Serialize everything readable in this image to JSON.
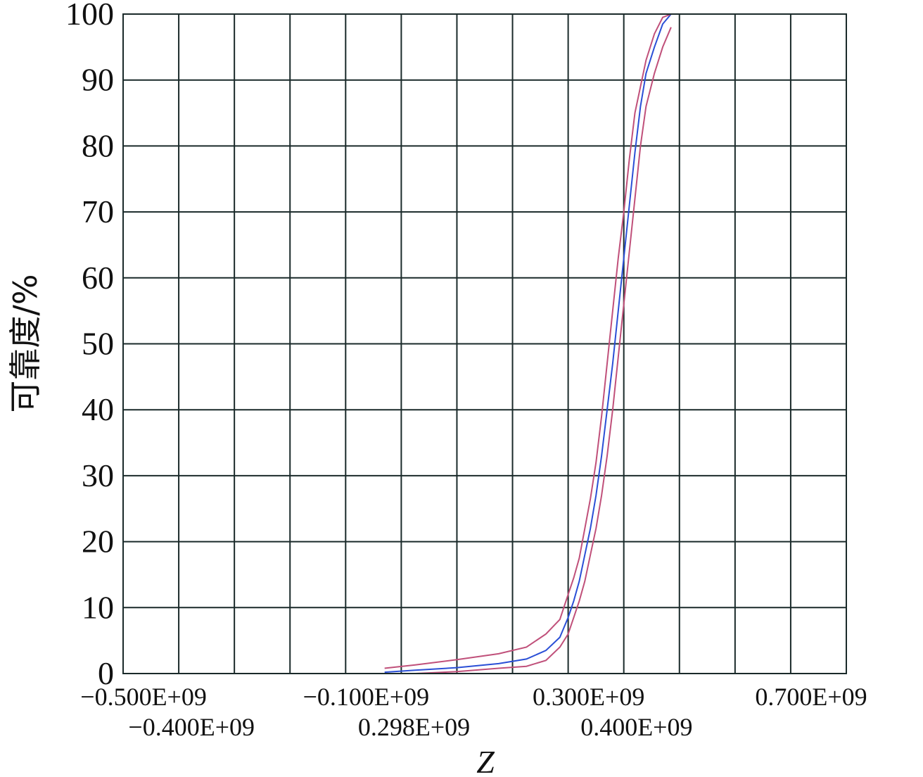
{
  "chart_data": {
    "type": "line",
    "xlabel": "Z",
    "ylabel": "可靠度/%",
    "ylim": [
      0,
      100
    ],
    "y_ticks": [
      "0",
      "10",
      "20",
      "30",
      "40",
      "50",
      "60",
      "70",
      "80",
      "90",
      "100"
    ],
    "x_tick_labels_top_row": [
      "−0.500E+09",
      "−0.100E+09",
      "0.300E+09",
      "0.700E+09"
    ],
    "x_tick_labels_bottom_row": [
      "−0.400E+09",
      "0.298E+09",
      "0.400E+09"
    ],
    "grid": true,
    "colors": {
      "center": "#2a4fd6",
      "bounds": "#c0507a",
      "grid": "#1a2a2a"
    },
    "series": [
      {
        "role": "center",
        "points": [
          [
            0.04,
            0.2
          ],
          [
            0.15,
            0.5
          ],
          [
            0.3,
            0.9
          ],
          [
            0.45,
            1.5
          ],
          [
            0.55,
            2.2
          ],
          [
            0.62,
            3.5
          ],
          [
            0.67,
            5.5
          ],
          [
            0.7,
            8.5
          ],
          [
            0.72,
            11
          ],
          [
            0.74,
            14
          ],
          [
            0.76,
            18
          ],
          [
            0.78,
            22
          ],
          [
            0.8,
            27
          ],
          [
            0.82,
            33
          ],
          [
            0.84,
            40
          ],
          [
            0.86,
            47
          ],
          [
            0.88,
            55
          ],
          [
            0.9,
            63
          ],
          [
            0.92,
            71
          ],
          [
            0.94,
            79
          ],
          [
            0.96,
            86
          ],
          [
            0.98,
            91
          ],
          [
            1.01,
            95
          ],
          [
            1.04,
            98.5
          ],
          [
            1.07,
            100
          ]
        ]
      },
      {
        "role": "upper-bound",
        "points": [
          [
            0.04,
            0.8
          ],
          [
            0.15,
            1.3
          ],
          [
            0.3,
            2.1
          ],
          [
            0.45,
            3
          ],
          [
            0.55,
            4
          ],
          [
            0.62,
            6
          ],
          [
            0.67,
            8.2
          ],
          [
            0.7,
            12
          ],
          [
            0.72,
            14.5
          ],
          [
            0.74,
            17.5
          ],
          [
            0.76,
            22
          ],
          [
            0.78,
            26.5
          ],
          [
            0.8,
            32
          ],
          [
            0.82,
            39
          ],
          [
            0.84,
            47
          ],
          [
            0.86,
            55
          ],
          [
            0.88,
            63
          ],
          [
            0.9,
            70
          ],
          [
            0.92,
            78
          ],
          [
            0.94,
            85
          ],
          [
            0.96,
            89
          ],
          [
            0.98,
            93
          ],
          [
            1.01,
            97
          ],
          [
            1.04,
            99.5
          ],
          [
            1.07,
            100
          ]
        ]
      },
      {
        "role": "lower-bound",
        "points": [
          [
            0.04,
            0
          ],
          [
            0.15,
            0
          ],
          [
            0.3,
            0.3
          ],
          [
            0.45,
            0.8
          ],
          [
            0.55,
            1.1
          ],
          [
            0.62,
            2
          ],
          [
            0.67,
            4
          ],
          [
            0.7,
            6
          ],
          [
            0.72,
            8.5
          ],
          [
            0.74,
            11
          ],
          [
            0.76,
            14
          ],
          [
            0.78,
            18
          ],
          [
            0.8,
            22
          ],
          [
            0.82,
            27
          ],
          [
            0.84,
            33
          ],
          [
            0.86,
            40
          ],
          [
            0.88,
            48
          ],
          [
            0.9,
            56
          ],
          [
            0.92,
            64
          ],
          [
            0.94,
            72
          ],
          [
            0.96,
            80
          ],
          [
            0.98,
            86
          ],
          [
            1.01,
            91
          ],
          [
            1.04,
            95
          ],
          [
            1.07,
            98
          ]
        ]
      }
    ]
  }
}
